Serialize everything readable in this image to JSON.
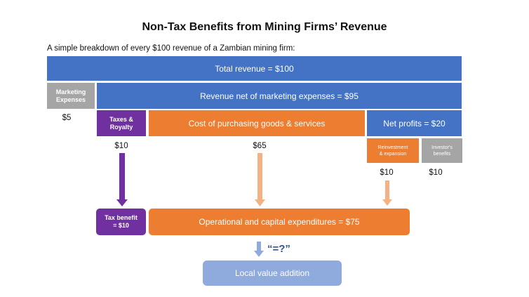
{
  "title": "Non-Tax Benefits from Mining Firms’ Revenue",
  "subtitle": "A simple breakdown of every $100 revenue of a Zambian mining firm:",
  "boxes": {
    "total_revenue": "Total revenue = $100",
    "marketing": "Marketing\nExpenses",
    "net_marketing": "Revenue net of marketing expenses = $95",
    "taxes": "Taxes &\nRoyalty",
    "cost": "Cost of purchasing goods & services",
    "net_profits": "Net profits = $20",
    "reinvestment": "Reinvestment\n& expansion",
    "investors": "Investor's\nbenefits",
    "tax_benefit": "Tax benefit\n= $10",
    "opex": "Operational and capital expenditures = $75",
    "local_value": "Local value addition"
  },
  "values": {
    "marketing": "$5",
    "taxes": "$10",
    "cost": "$65",
    "reinvestment": "$10",
    "investors": "$10"
  },
  "equals_label": "“=?”",
  "colors": {
    "blue": "#4472c4",
    "grey": "#a5a5a5",
    "purple": "#7030a0",
    "orange": "#ed7d31",
    "light_orange": "#f4b183",
    "light_blue": "#8faadc"
  }
}
